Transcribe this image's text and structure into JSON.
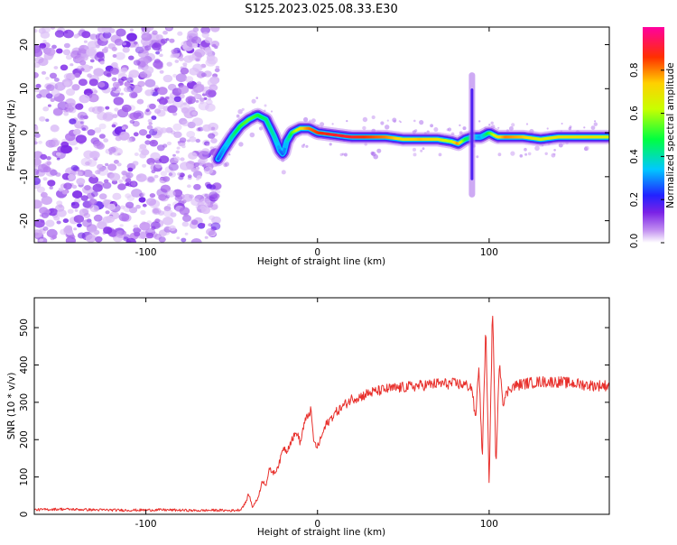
{
  "figure_title": "S125.2023.025.08.33.E30",
  "colorbar": {
    "label": "Normalized spectral amplitude",
    "ticks": [
      "0.0",
      "0.2",
      "0.4",
      "0.6",
      "0.8"
    ],
    "tick_values": [
      0.0,
      0.2,
      0.4,
      0.6,
      0.8
    ],
    "range": [
      0,
      1
    ]
  },
  "chart_data": [
    {
      "type": "heatmap",
      "title": "",
      "xlabel": "Height of straight line (km)",
      "ylabel": "Frequency (Hz)",
      "xlim": [
        -165,
        170
      ],
      "ylim": [
        -25,
        24
      ],
      "xticks": [
        -100,
        0,
        100
      ],
      "xtick_labels": [
        "-100",
        "0",
        "100"
      ],
      "yticks": [
        -20,
        -10,
        0,
        10,
        20
      ],
      "ytick_labels": [
        "-20",
        "-10",
        "0",
        "10",
        "20"
      ],
      "noise_region_x": [
        -165,
        -58
      ],
      "ridge": {
        "x": [
          -58,
          -55,
          -50,
          -45,
          -40,
          -35,
          -30,
          -25,
          -22,
          -20,
          -18,
          -15,
          -10,
          -5,
          0,
          10,
          20,
          30,
          40,
          50,
          60,
          70,
          78,
          82,
          86,
          90,
          95,
          100,
          105,
          110,
          120,
          130,
          140,
          150,
          160,
          170
        ],
        "y": [
          -6,
          -4,
          -1,
          1.5,
          3,
          4,
          3,
          -1,
          -4,
          -5,
          -2,
          0,
          1,
          1,
          0,
          -0.5,
          -1,
          -1,
          -1,
          -1.5,
          -1.5,
          -1.5,
          -2,
          -2.5,
          -1.5,
          -1,
          -1,
          0,
          -1,
          -1,
          -1,
          -1.5,
          -1,
          -1,
          -1,
          -1
        ],
        "amplitude": [
          0.25,
          0.3,
          0.4,
          0.5,
          0.55,
          0.5,
          0.45,
          0.4,
          0.3,
          0.25,
          0.35,
          0.5,
          0.7,
          0.8,
          0.85,
          0.9,
          0.9,
          0.85,
          0.8,
          0.7,
          0.75,
          0.7,
          0.6,
          0.8,
          0.5,
          0.4,
          0.3,
          0.5,
          0.7,
          0.8,
          0.75,
          0.65,
          0.7,
          0.7,
          0.7,
          0.65
        ]
      },
      "spike": {
        "x": 90,
        "y_range": [
          -14,
          13
        ]
      }
    },
    {
      "type": "line",
      "title": "",
      "xlabel": "Height of straight line (km)",
      "ylabel": "SNR (10 * v/v)",
      "xlim": [
        -165,
        170
      ],
      "ylim": [
        0,
        580
      ],
      "xticks": [
        -100,
        0,
        100
      ],
      "xtick_labels": [
        "-100",
        "0",
        "100"
      ],
      "yticks": [
        0,
        100,
        200,
        300,
        400,
        500
      ],
      "ytick_labels": [
        "0",
        "100",
        "200",
        "300",
        "400",
        "500"
      ],
      "series": [
        {
          "color": "#e8302c",
          "x": [
            -165,
            -150,
            -130,
            -110,
            -90,
            -70,
            -60,
            -50,
            -45,
            -42,
            -40,
            -38,
            -35,
            -32,
            -30,
            -28,
            -25,
            -22,
            -20,
            -18,
            -15,
            -12,
            -10,
            -8,
            -6,
            -4,
            -2,
            0,
            5,
            10,
            15,
            20,
            25,
            30,
            35,
            40,
            50,
            60,
            70,
            80,
            85,
            90,
            92,
            94,
            96,
            98,
            100,
            102,
            104,
            106,
            108,
            112,
            120,
            130,
            140,
            150,
            160,
            170
          ],
          "y": [
            12,
            14,
            12,
            11,
            12,
            10,
            11,
            10,
            12,
            30,
            55,
            20,
            40,
            90,
            80,
            120,
            110,
            140,
            180,
            170,
            200,
            220,
            190,
            240,
            260,
            280,
            190,
            180,
            240,
            270,
            290,
            310,
            315,
            325,
            330,
            335,
            340,
            345,
            350,
            350,
            348,
            340,
            250,
            400,
            150,
            500,
            80,
            560,
            120,
            420,
            300,
            340,
            350,
            355,
            355,
            350,
            345,
            345
          ]
        }
      ]
    }
  ]
}
